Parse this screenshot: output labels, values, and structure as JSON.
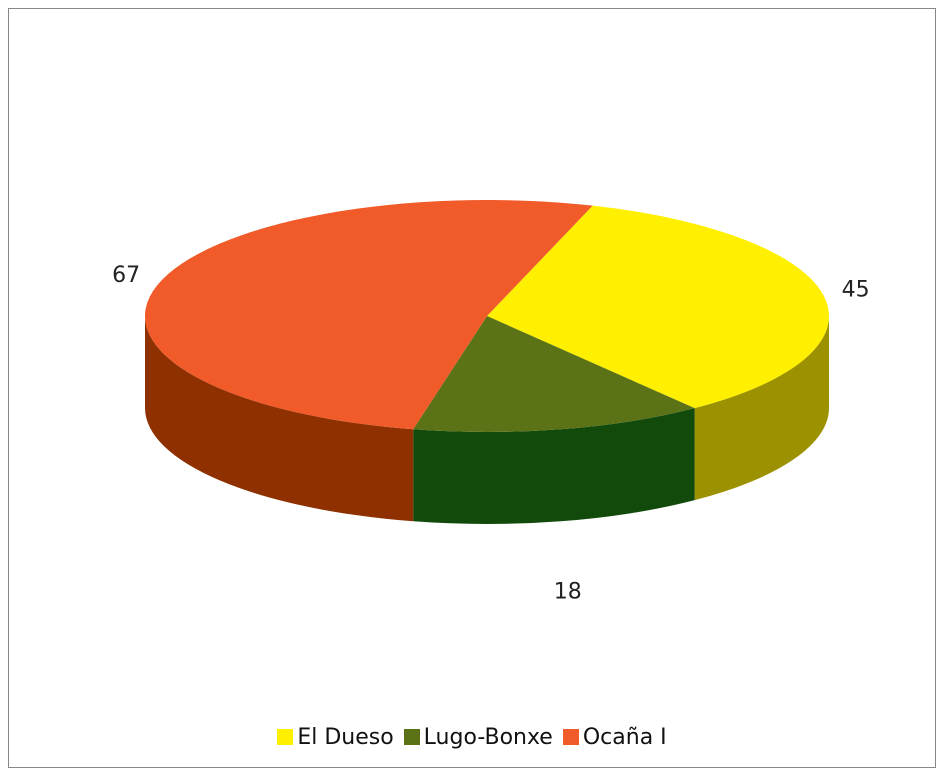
{
  "chart_data": {
    "type": "pie",
    "categories": [
      "El Dueso",
      "Lugo-Bonxe",
      "Ocaña I"
    ],
    "values": [
      45,
      18,
      67
    ],
    "data_labels": [
      "45",
      "18",
      "67"
    ],
    "colors": {
      "El Dueso": "#FFEF00",
      "Lugo-Bonxe": "#5B7316",
      "Ocaña I": "#F15A29"
    },
    "side_colors": {
      "El Dueso": "#9C9100",
      "Lugo-Bonxe": "#124A0C",
      "Ocaña I": "#8E3000"
    },
    "three_d": true,
    "legend_position": "bottom"
  },
  "legend": {
    "items": [
      {
        "label": "El Dueso",
        "color": "#FFEF00"
      },
      {
        "label": "Lugo-Bonxe",
        "color": "#5B7316"
      },
      {
        "label": "Ocaña I",
        "color": "#F15A29"
      }
    ]
  }
}
